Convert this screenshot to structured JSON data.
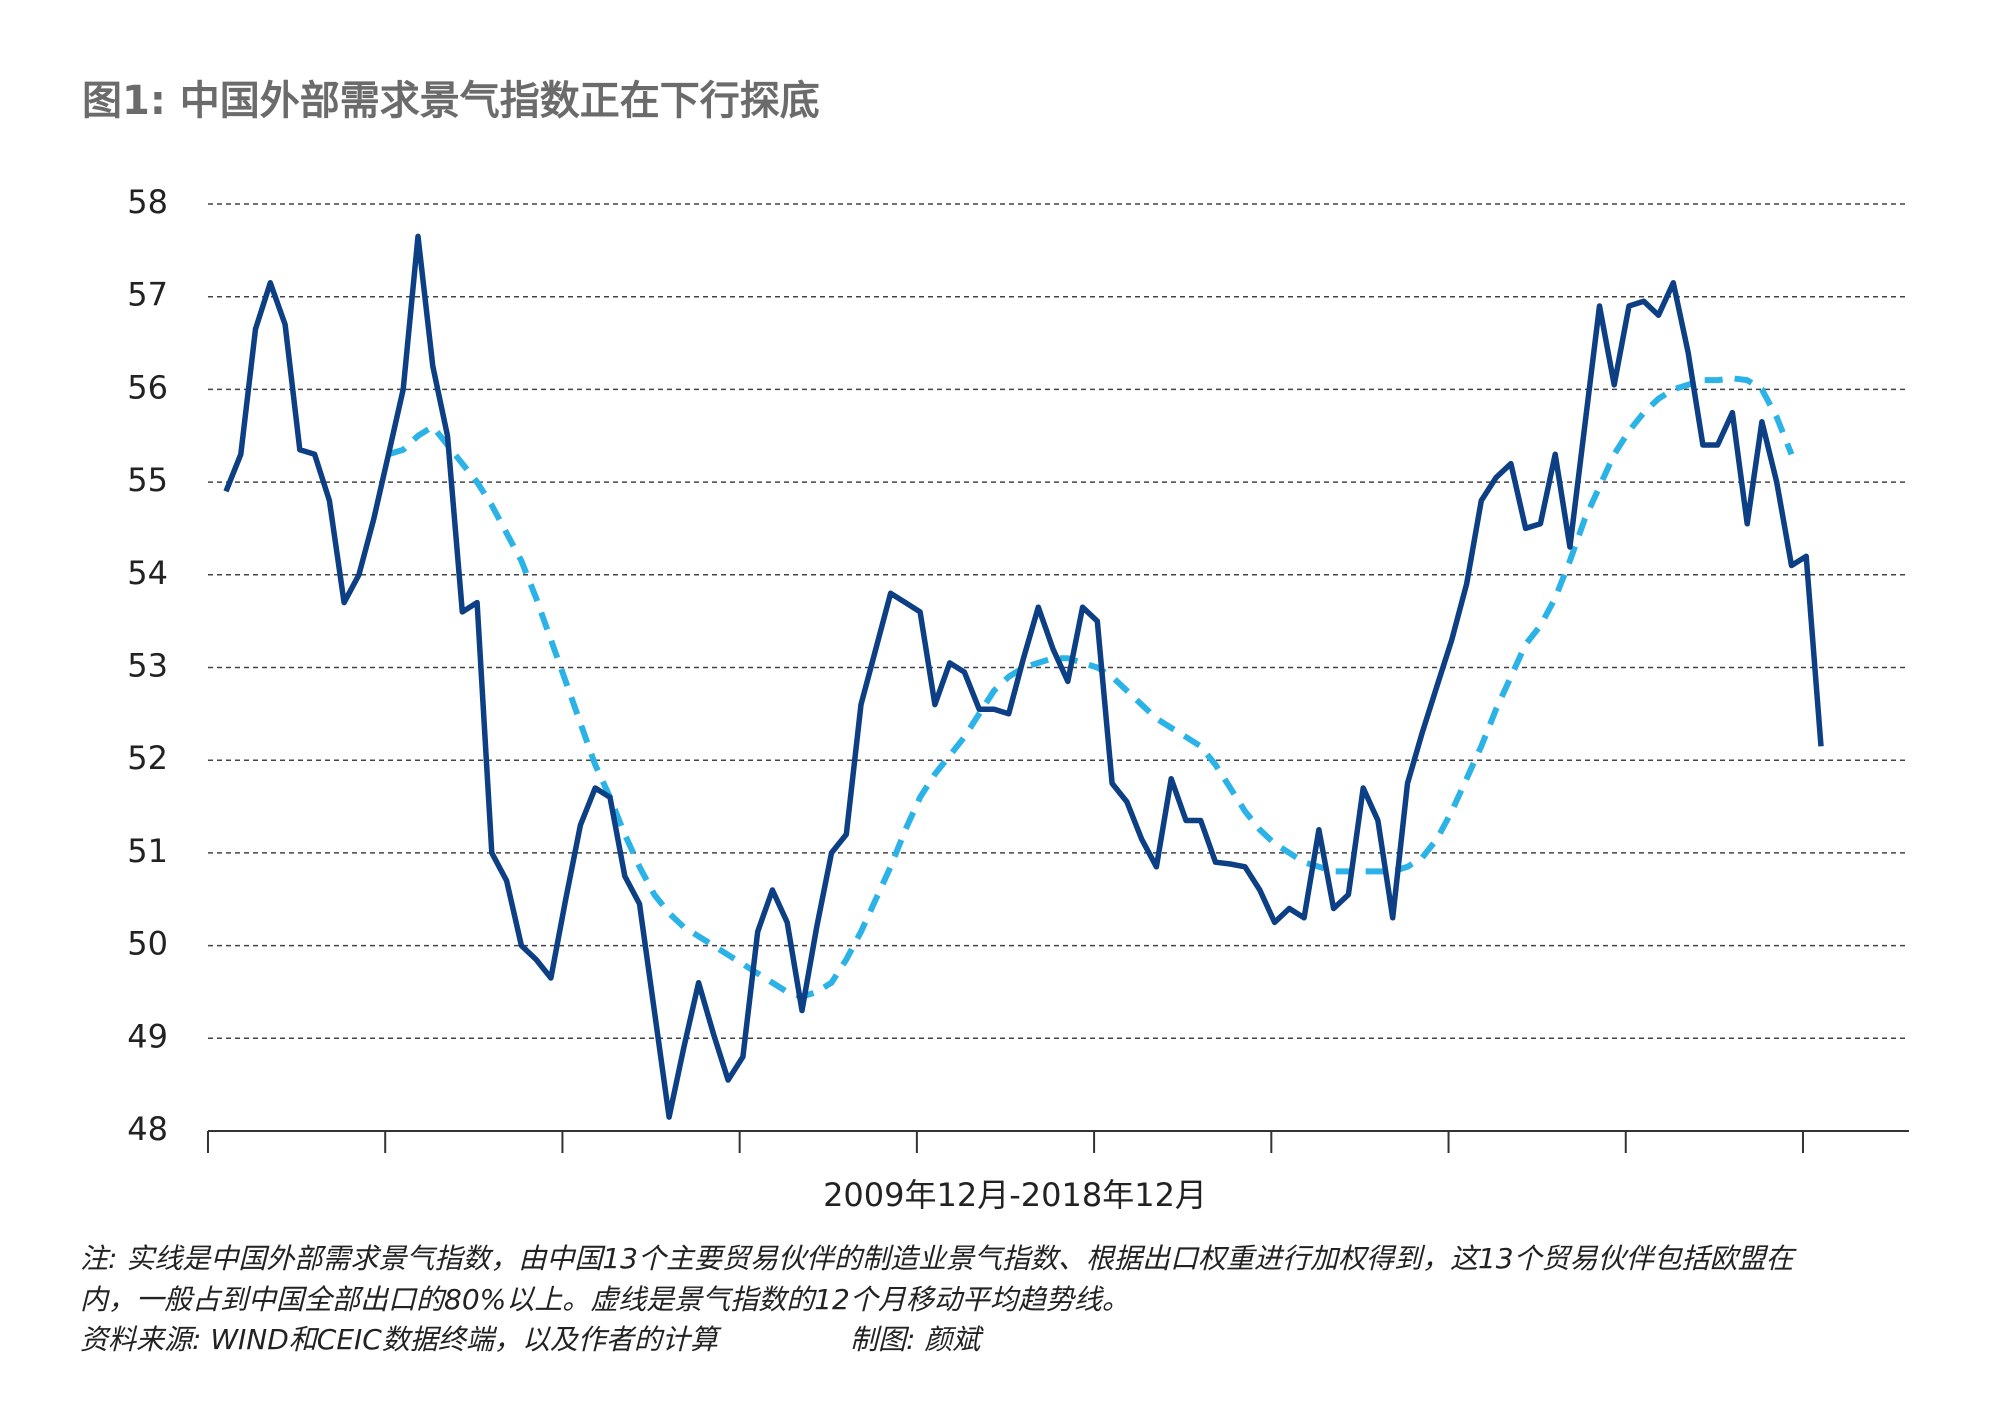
{
  "chart_data": {
    "type": "line",
    "title": "图1: 中国外部需求景气指数正在下行探底",
    "xlabel": "2009年12月-2018年12月",
    "notes": [
      "注: 实线是中国外部需求景气指数，由中国13个主要贸易伙伴的制造业景气指数、根据出口权重进行加权得到，这13个贸易伙伴包括欧盟在",
      "内，一般占到中国全部出口的80%以上。虚线是景气指数的12个月移动平均趋势线。"
    ],
    "source": "资料来源: WIND和CEIC数据终端，以及作者的计算",
    "credit": "制图: 颜斌",
    "categories": [
      null,
      null,
      null,
      null,
      null,
      null,
      null,
      null,
      null,
      null,
      null,
      null,
      null,
      null,
      null,
      null,
      null,
      null,
      null,
      null,
      null,
      null,
      null,
      null,
      null,
      null,
      null,
      null,
      null,
      null,
      null,
      null,
      null,
      null,
      null,
      null,
      null,
      null,
      null,
      null,
      null,
      null,
      null,
      null,
      null,
      null,
      null,
      null,
      null,
      null,
      null,
      null,
      null,
      null,
      null,
      null,
      null,
      null,
      null,
      null,
      null,
      null,
      null,
      null,
      null,
      null,
      null,
      null,
      null,
      null,
      null,
      null,
      null,
      null,
      null,
      null,
      null,
      null,
      null,
      null,
      null,
      null,
      null,
      null,
      null,
      null,
      null,
      null,
      null,
      null,
      null,
      null,
      null,
      null,
      null,
      null,
      null,
      null,
      null,
      null,
      null,
      null,
      null,
      null,
      null,
      null,
      null,
      null,
      null
    ],
    "series": [
      {
        "color": "#0d3f85",
        "dashed": false,
        "values": [
          54.9,
          55.3,
          56.65,
          57.15,
          56.7,
          55.35,
          55.3,
          54.8,
          53.7,
          54.0,
          54.6,
          55.3,
          56.0,
          57.65,
          56.25,
          55.5,
          53.6,
          53.7,
          51.0,
          50.7,
          50.0,
          49.85,
          49.65,
          50.5,
          51.3,
          51.7,
          51.6,
          50.75,
          50.45,
          49.3,
          48.15,
          48.9,
          49.6,
          49.05,
          48.55,
          48.8,
          50.15,
          50.6,
          50.25,
          49.3,
          50.2,
          51.0,
          51.2,
          52.6,
          53.2,
          53.8,
          53.7,
          53.6,
          52.6,
          53.05,
          52.95,
          52.55,
          52.55,
          52.5,
          53.1,
          53.65,
          53.2,
          52.85,
          53.65,
          53.5,
          51.75,
          51.55,
          51.15,
          50.85,
          51.8,
          51.35,
          51.35,
          50.9,
          50.88,
          50.85,
          50.6,
          50.25,
          50.4,
          50.3,
          51.25,
          50.4,
          50.55,
          51.7,
          51.35,
          50.3,
          51.75,
          52.3,
          52.8,
          53.3,
          53.9,
          54.8,
          55.05,
          55.2,
          54.5,
          54.55,
          55.3,
          54.3,
          55.6,
          56.9,
          56.05,
          56.9,
          56.95,
          56.8,
          57.15,
          56.4,
          55.4,
          55.4,
          55.75,
          54.55,
          55.65,
          55.0,
          54.1,
          54.2,
          52.15
        ]
      },
      {
        "color": "#2bb3e8",
        "dashed": true,
        "values": [
          null,
          null,
          null,
          null,
          null,
          null,
          null,
          null,
          null,
          null,
          null,
          55.3,
          55.35,
          55.5,
          55.6,
          55.4,
          55.2,
          55.0,
          54.75,
          54.45,
          54.15,
          53.75,
          53.3,
          52.85,
          52.4,
          51.95,
          51.6,
          51.2,
          50.85,
          50.55,
          50.35,
          50.2,
          50.1,
          50.0,
          49.9,
          49.8,
          49.7,
          49.6,
          49.5,
          49.45,
          49.5,
          49.6,
          49.85,
          50.15,
          50.5,
          50.85,
          51.25,
          51.6,
          51.85,
          52.05,
          52.25,
          52.5,
          52.75,
          52.9,
          53.0,
          53.05,
          53.1,
          53.1,
          53.05,
          53.0,
          52.9,
          52.75,
          52.6,
          52.45,
          52.35,
          52.25,
          52.15,
          51.95,
          51.7,
          51.45,
          51.25,
          51.1,
          51.0,
          50.9,
          50.85,
          50.8,
          50.8,
          50.8,
          50.8,
          50.8,
          50.85,
          50.95,
          51.15,
          51.45,
          51.8,
          52.15,
          52.55,
          52.9,
          53.25,
          53.45,
          53.75,
          54.15,
          54.6,
          54.95,
          55.3,
          55.55,
          55.75,
          55.9,
          56.0,
          56.05,
          56.1,
          56.1,
          56.12,
          56.1,
          56.0,
          55.7,
          55.3,
          null,
          null
        ]
      }
    ],
    "ylim": [
      48,
      58
    ],
    "yticks": [
      48,
      49,
      50,
      51,
      52,
      53,
      54,
      55,
      56,
      57,
      58
    ],
    "grid": true
  }
}
